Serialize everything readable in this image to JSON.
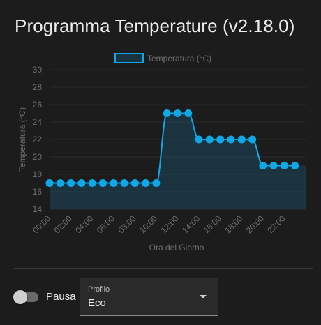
{
  "header": {
    "title": "Programma Temperature (v2.18.0)"
  },
  "chart_data": {
    "type": "line",
    "title": "",
    "legend": "top",
    "xlabel": "Ora del Giorno",
    "ylabel": "Temperatura (°C)",
    "ylim": [
      14,
      30
    ],
    "yticks": [
      "14",
      "16",
      "18",
      "20",
      "22",
      "24",
      "26",
      "28",
      "30"
    ],
    "categories": [
      "00:00",
      "01:00",
      "02:00",
      "03:00",
      "04:00",
      "05:00",
      "06:00",
      "07:00",
      "08:00",
      "09:00",
      "10:00",
      "11:00",
      "12:00",
      "13:00",
      "14:00",
      "15:00",
      "16:00",
      "17:00",
      "18:00",
      "19:00",
      "20:00",
      "21:00",
      "22:00",
      "23:00"
    ],
    "tick_labels": [
      "00:00",
      "",
      "02:00",
      "",
      "04:00",
      "",
      "06:00",
      "",
      "08:00",
      "",
      "10:00",
      "",
      "12:00",
      "",
      "14:00",
      "",
      "16:00",
      "",
      "18:00",
      "",
      "20:00",
      "",
      "22:00",
      ""
    ],
    "series": [
      {
        "name": "Temperatura (°C)",
        "values": [
          17,
          17,
          17,
          17,
          17,
          17,
          17,
          17,
          17,
          17,
          17,
          25,
          25,
          25,
          22,
          22,
          22,
          22,
          22,
          22,
          19,
          19,
          19,
          19
        ],
        "color": "#0fa7e6",
        "fill": "rgba(15,167,230,0.17)"
      }
    ]
  },
  "controls": {
    "pause_label": "Pausa",
    "pause_on": false,
    "profile_label": "Profilo",
    "profile_value": "Eco"
  }
}
